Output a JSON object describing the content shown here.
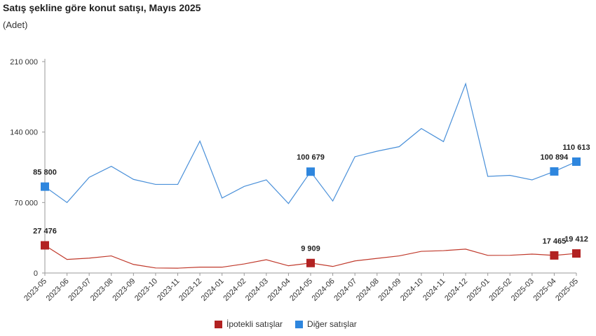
{
  "title": "Satış şekline göre konut satışı, Mayıs 2025",
  "unit": "(Adet)",
  "legend": {
    "mortgage": "İpotekli satışlar",
    "other": "Diğer satışlar"
  },
  "colors": {
    "mortgage_line": "#c0392b",
    "mortgage_marker": "#b22222",
    "other_line": "#4a90d9",
    "other_marker": "#2e86de",
    "axis": "#999999"
  },
  "chart_data": {
    "type": "line",
    "title": "Satış şekline göre konut satışı, Mayıs 2025",
    "ylabel": "(Adet)",
    "ylim": [
      0,
      210000
    ],
    "yticks": [
      0,
      70000,
      140000,
      210000
    ],
    "ytick_labels": [
      "0",
      "70 000",
      "140 000",
      "210 000"
    ],
    "x": [
      "2023-05",
      "2023-06",
      "2023-07",
      "2023-08",
      "2023-09",
      "2023-10",
      "2023-11",
      "2023-12",
      "2024-01",
      "2024-02",
      "2024-03",
      "2024-04",
      "2024-05",
      "2024-06",
      "2024-07",
      "2024-08",
      "2024-09",
      "2024-10",
      "2024-11",
      "2024-12",
      "2025-01",
      "2025-02",
      "2025-03",
      "2025-04",
      "2025-05"
    ],
    "grid": false,
    "legend_position": "bottom",
    "series": [
      {
        "name": "İpotekli satışlar",
        "key": "mortgage",
        "values": [
          27476,
          13500,
          14800,
          17000,
          8500,
          5000,
          4800,
          5800,
          5800,
          9000,
          13200,
          7200,
          9909,
          6500,
          12000,
          14500,
          17000,
          21500,
          22200,
          23700,
          17500,
          17600,
          18800,
          17465,
          19412
        ],
        "labels": {
          "0": "27 476",
          "12": "9 909",
          "23": "17 465",
          "24": "19 412"
        }
      },
      {
        "name": "Diğer satışlar",
        "key": "other",
        "values": [
          85800,
          70000,
          95000,
          106000,
          93000,
          88000,
          88000,
          131000,
          74500,
          86000,
          92500,
          69000,
          100679,
          71500,
          115500,
          121000,
          125500,
          143500,
          130500,
          188000,
          96000,
          97000,
          92500,
          100894,
          110613
        ],
        "labels": {
          "0": "85 800",
          "12": "100 679",
          "23": "100 894",
          "24": "110 613"
        }
      }
    ]
  }
}
